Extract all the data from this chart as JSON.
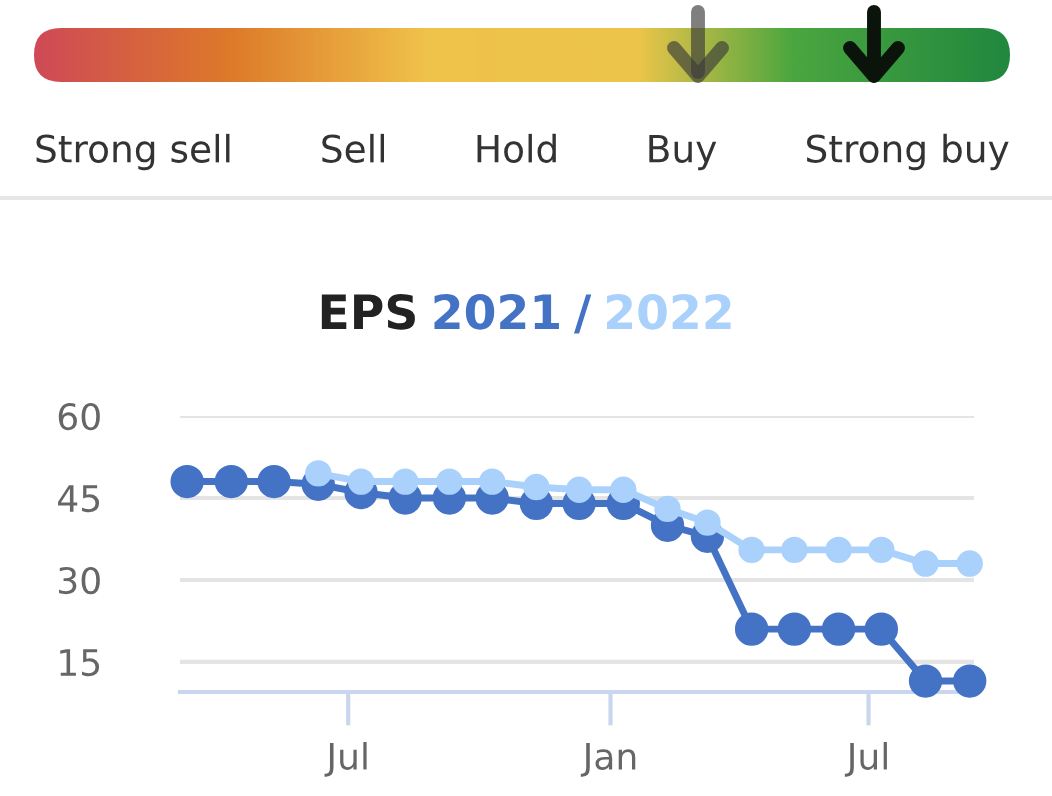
{
  "chart_data": [
    {
      "type": "other",
      "categories": [
        "Strong sell",
        "Sell",
        "Hold",
        "Buy",
        "Strong buy"
      ]
    },
    {
      "type": "line",
      "title": "EPS 2021 / 2022",
      "x": [
        "2021-03-10",
        "2021-04-10",
        "2021-05-10",
        "2021-06-10",
        "2021-07-10",
        "2021-08-10",
        "2021-09-10",
        "2021-10-10",
        "2021-11-10",
        "2021-12-10",
        "2022-01-10",
        "2022-02-10",
        "2022-03-10",
        "2022-04-10",
        "2022-05-10",
        "2022-06-10",
        "2022-07-10",
        "2022-08-10",
        "2022-09-10"
      ],
      "series": [
        {
          "color": "#4472c4",
          "values": [
            48,
            48,
            48,
            47.5,
            46,
            45,
            45,
            45,
            44,
            44,
            44,
            40,
            38,
            21,
            21,
            21,
            21,
            11.5,
            11.5
          ]
        },
        {
          "color": "#a9d1fb",
          "values": [
            null,
            null,
            null,
            49.5,
            48,
            48,
            48,
            48,
            47,
            46.5,
            46.5,
            43,
            40.5,
            35.5,
            35.5,
            35.5,
            35.5,
            33,
            33
          ]
        }
      ],
      "ylim": [
        9.5,
        60
      ],
      "yticks": [
        15,
        30,
        45,
        60
      ],
      "xlim": [
        "2021-03-05",
        "2022-09-13"
      ],
      "xticks": [
        {
          "value": "2021-07-01",
          "label": "Jul"
        },
        {
          "value": "2022-01-01",
          "label": "Jan"
        },
        {
          "value": "2022-07-01",
          "label": "Jul"
        }
      ],
      "grid": "y",
      "marker": "circle",
      "line_style": "solid",
      "legend": false
    }
  ]
}
